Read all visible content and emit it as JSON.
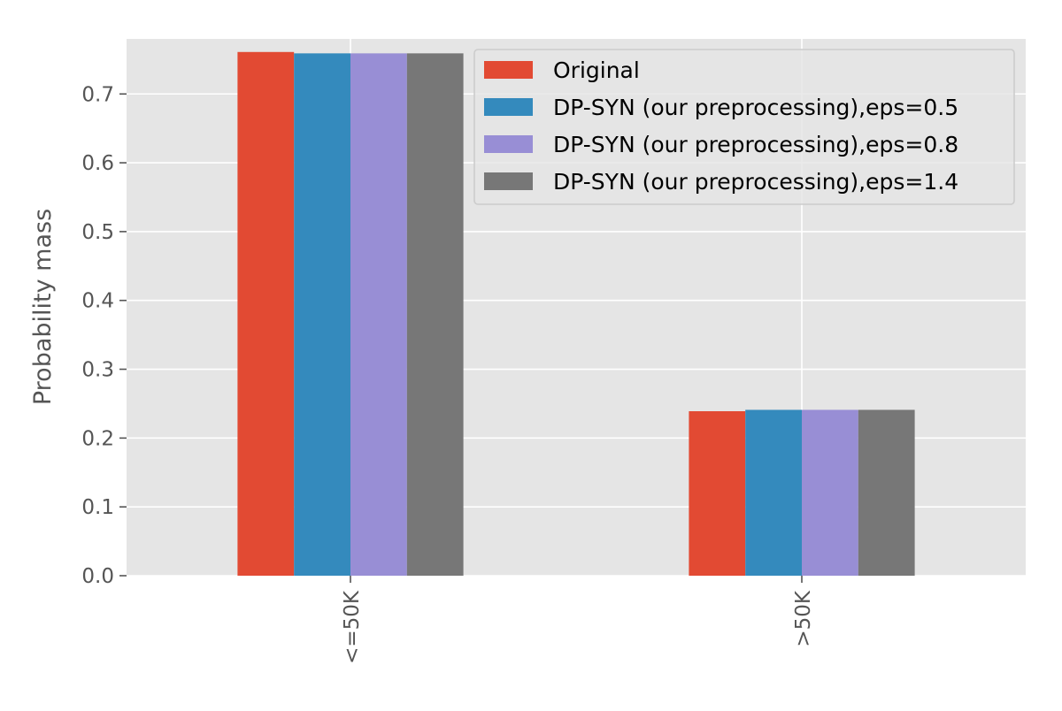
{
  "chart_data": {
    "type": "bar",
    "title": "",
    "xlabel": "",
    "ylabel": "Probability mass",
    "categories": [
      "<=50K",
      ">50K"
    ],
    "ylim": [
      0,
      0.78
    ],
    "yticks": [
      "0.0",
      "0.1",
      "0.2",
      "0.3",
      "0.4",
      "0.5",
      "0.6",
      "0.7"
    ],
    "grid": true,
    "legend_position": "top-right",
    "series": [
      {
        "name": "Original",
        "color": "#e24a33",
        "values": [
          0.761,
          0.239
        ]
      },
      {
        "name": "DP-SYN (our preprocessing),eps=0.5",
        "color": "#348abd",
        "values": [
          0.759,
          0.241
        ]
      },
      {
        "name": "DP-SYN (our preprocessing),eps=0.8",
        "color": "#988ed5",
        "values": [
          0.759,
          0.241
        ]
      },
      {
        "name": "DP-SYN (our preprocessing),eps=1.4",
        "color": "#777777",
        "values": [
          0.759,
          0.241
        ]
      }
    ],
    "colors": {
      "plot_background": "#e5e5e5",
      "grid": "#ffffff",
      "axis_text": "#555555"
    }
  }
}
